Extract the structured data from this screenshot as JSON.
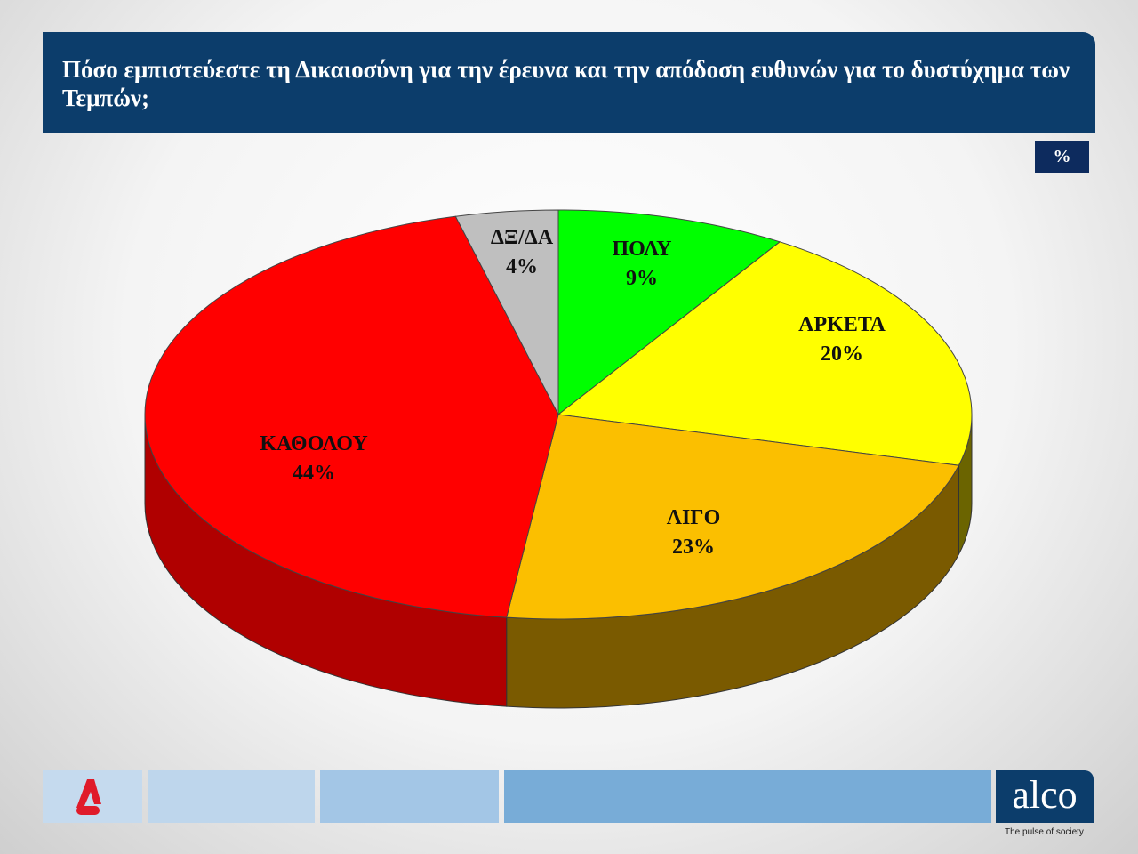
{
  "title": "Πόσο εμπιστεύεστε τη Δικαιοσύνη για την έρευνα και την απόδοση ευθυνών για το δυστύχημα των Τεμπών;",
  "unit_badge": "%",
  "footer": {
    "left_logo": "A NEWS",
    "right_logo": "alco",
    "tagline": "The pulse of society"
  },
  "chart_data": {
    "type": "pie",
    "style": "3d",
    "title": "Πόσο εμπιστεύεστε τη Δικαιοσύνη για την έρευνα και την απόδοση ευθυνών για το δυστύχημα των Τεμπών;",
    "categories": [
      "ΠΟΛΥ",
      "ΑΡΚΕΤΑ",
      "ΛΙΓΟ",
      "ΚΑΘΟΛΟΥ",
      "ΔΞ/ΔΑ"
    ],
    "values": [
      9,
      20,
      23,
      44,
      4
    ],
    "value_labels": [
      "9%",
      "20%",
      "23%",
      "44%",
      "4%"
    ],
    "colors": [
      "#00ff00",
      "#ffff00",
      "#fbbf00",
      "#ff0000",
      "#bfbfbf"
    ],
    "side_colors": [
      "#008800",
      "#6b6400",
      "#7a5a00",
      "#b00000",
      "#777777"
    ]
  }
}
